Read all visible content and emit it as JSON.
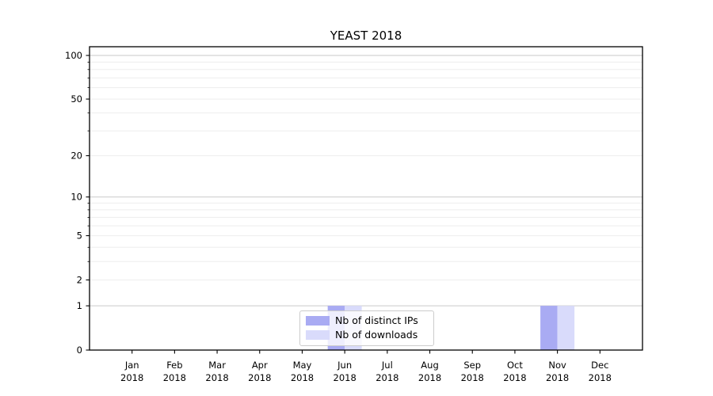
{
  "chart_data": {
    "type": "bar",
    "title": "YEAST 2018",
    "categories": [
      "Jan",
      "Feb",
      "Mar",
      "Apr",
      "May",
      "Jun",
      "Jul",
      "Aug",
      "Sep",
      "Oct",
      "Nov",
      "Dec"
    ],
    "x_ticklabel_line2": "2018",
    "series": [
      {
        "name": "Nb of distinct IPs",
        "color": "#a9abf3",
        "values": [
          0,
          0,
          0,
          0,
          0,
          1,
          0,
          0,
          0,
          0,
          1,
          0
        ]
      },
      {
        "name": "Nb of downloads",
        "color": "#d9dbfb",
        "values": [
          0,
          0,
          0,
          0,
          0,
          1,
          0,
          0,
          0,
          0,
          1,
          0
        ]
      }
    ],
    "xlabel": "",
    "ylabel": "",
    "yscale": "log1p",
    "ylim": [
      0,
      115
    ],
    "yticks": [
      0,
      1,
      2,
      5,
      10,
      20,
      50,
      100
    ],
    "yticks_minor": [
      3,
      4,
      6,
      7,
      8,
      9,
      30,
      40,
      60,
      70,
      80,
      90
    ],
    "grid": {
      "major_values": [
        1,
        10,
        100
      ],
      "major_color": "#c9c9c9",
      "minor_color": "#ededed"
    },
    "legend": {
      "position": "lower center",
      "frame_color": "#cccccc"
    },
    "axis_color": "#000000",
    "text_color": "#000000"
  }
}
